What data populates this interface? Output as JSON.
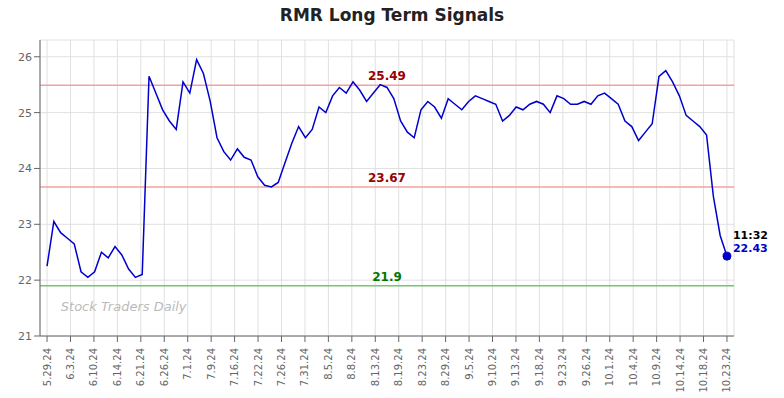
{
  "chart_data": {
    "type": "line",
    "title": "RMR Long Term Signals",
    "grid": true,
    "xlim": [
      -0.3,
      29.3
    ],
    "xticks": [
      {
        "value": 0,
        "label": "5.29.24"
      },
      {
        "value": 1,
        "label": "6.3.24"
      },
      {
        "value": 2,
        "label": "6.10.24"
      },
      {
        "value": 3,
        "label": "6.14.24"
      },
      {
        "value": 4,
        "label": "6.21.24"
      },
      {
        "value": 5,
        "label": "6.26.24"
      },
      {
        "value": 6,
        "label": "7.1.24"
      },
      {
        "value": 7,
        "label": "7.9.24"
      },
      {
        "value": 8,
        "label": "7.16.24"
      },
      {
        "value": 9,
        "label": "7.22.24"
      },
      {
        "value": 10,
        "label": "7.26.24"
      },
      {
        "value": 11,
        "label": "7.31.24"
      },
      {
        "value": 12,
        "label": "8.5.24"
      },
      {
        "value": 13,
        "label": "8.8.24"
      },
      {
        "value": 14,
        "label": "8.13.24"
      },
      {
        "value": 15,
        "label": "8.19.24"
      },
      {
        "value": 16,
        "label": "8.23.24"
      },
      {
        "value": 17,
        "label": "8.29.24"
      },
      {
        "value": 18,
        "label": "9.5.24"
      },
      {
        "value": 19,
        "label": "9.10.24"
      },
      {
        "value": 20,
        "label": "9.13.24"
      },
      {
        "value": 21,
        "label": "9.18.24"
      },
      {
        "value": 22,
        "label": "9.23.24"
      },
      {
        "value": 23,
        "label": "9.26.24"
      },
      {
        "value": 24,
        "label": "10.1.24"
      },
      {
        "value": 25,
        "label": "10.4.24"
      },
      {
        "value": 26,
        "label": "10.9.24"
      },
      {
        "value": 27,
        "label": "10.14.24"
      },
      {
        "value": 28,
        "label": "10.18.24"
      },
      {
        "value": 29,
        "label": "10.23.24"
      }
    ],
    "ylim": [
      21.0,
      26.3
    ],
    "yticks": [
      21,
      22,
      23,
      24,
      25,
      26
    ],
    "x": [
      0,
      0.29,
      0.58,
      0.87,
      1.16,
      1.45,
      1.74,
      2.03,
      2.32,
      2.61,
      2.9,
      3.19,
      3.48,
      3.77,
      4.06,
      4.35,
      4.64,
      4.93,
      5.22,
      5.51,
      5.8,
      6.09,
      6.38,
      6.67,
      6.96,
      7.25,
      7.54,
      7.83,
      8.12,
      8.41,
      8.7,
      8.99,
      9.28,
      9.57,
      9.86,
      10.15,
      10.44,
      10.73,
      11.02,
      11.31,
      11.6,
      11.89,
      12.18,
      12.47,
      12.76,
      13.05,
      13.34,
      13.63,
      13.92,
      14.21,
      14.5,
      14.79,
      15.08,
      15.37,
      15.66,
      15.95,
      16.24,
      16.53,
      16.82,
      17.11,
      17.4,
      17.69,
      17.98,
      18.27,
      18.56,
      18.85,
      19.14,
      19.43,
      19.72,
      20.01,
      20.3,
      20.59,
      20.88,
      21.17,
      21.46,
      21.75,
      22.04,
      22.33,
      22.62,
      22.91,
      23.2,
      23.49,
      23.78,
      24.07,
      24.36,
      24.65,
      24.94,
      25.23,
      25.52,
      25.81,
      26.1,
      26.39,
      26.68,
      26.97,
      27.26,
      27.55,
      27.84,
      28.13,
      28.42,
      28.71,
      29
    ],
    "series": [
      {
        "color": "#0000cc",
        "marker": "last",
        "values": [
          22.25,
          23.05,
          22.85,
          22.75,
          22.65,
          22.15,
          22.05,
          22.15,
          22.5,
          22.4,
          22.6,
          22.45,
          22.2,
          22.05,
          22.1,
          25.65,
          25.35,
          25.05,
          24.85,
          24.7,
          25.55,
          25.35,
          25.95,
          25.7,
          25.2,
          24.55,
          24.3,
          24.15,
          24.35,
          24.2,
          24.15,
          23.85,
          23.7,
          23.67,
          23.75,
          24.1,
          24.45,
          24.75,
          24.55,
          24.7,
          25.1,
          25.0,
          25.3,
          25.45,
          25.35,
          25.55,
          25.4,
          25.2,
          25.35,
          25.5,
          25.45,
          25.25,
          24.85,
          24.65,
          24.55,
          25.05,
          25.2,
          25.1,
          24.9,
          25.25,
          25.15,
          25.05,
          25.2,
          25.3,
          25.25,
          25.2,
          25.15,
          24.85,
          24.95,
          25.1,
          25.05,
          25.15,
          25.2,
          25.15,
          25.0,
          25.3,
          25.25,
          25.15,
          25.15,
          25.2,
          25.15,
          25.3,
          25.35,
          25.25,
          25.15,
          24.85,
          24.75,
          24.5,
          24.65,
          24.8,
          25.65,
          25.75,
          25.55,
          25.3,
          24.95,
          24.85,
          24.75,
          24.6,
          23.5,
          22.8,
          22.43
        ]
      }
    ],
    "reference_lines": [
      {
        "y": 25.49,
        "color": "#f5a0a0",
        "label": "25.49",
        "label_color": "#990000"
      },
      {
        "y": 23.67,
        "color": "#f5a0a0",
        "label": "23.67",
        "label_color": "#990000"
      },
      {
        "y": 21.9,
        "color": "#70c870",
        "label": "21.9",
        "label_color": "#007700"
      }
    ],
    "annotations": [
      {
        "text": "11:32",
        "x": 29,
        "y": 22.43,
        "color": "#000000"
      },
      {
        "text": "22.43",
        "x": 29,
        "y": 22.43,
        "color": "#0000cc"
      }
    ],
    "watermark": {
      "text": "Stock Traders Daily",
      "color": "#bbbbbb"
    }
  }
}
